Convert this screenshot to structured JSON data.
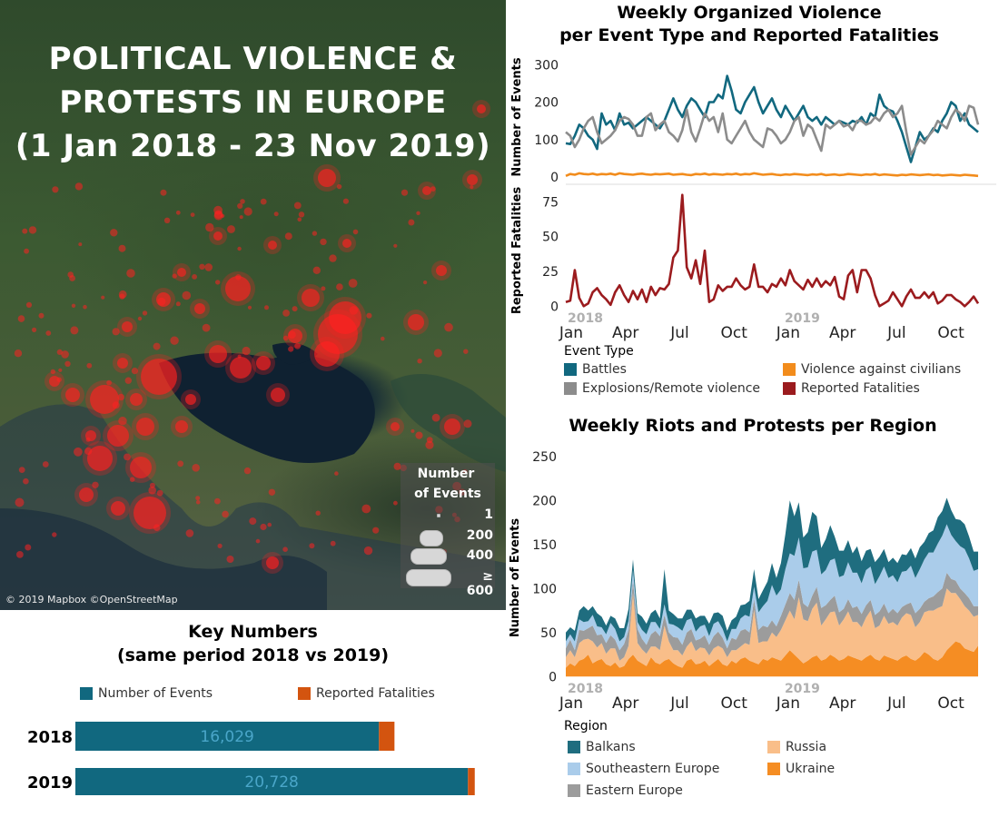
{
  "map": {
    "title_lines": [
      "POLITICAL VIOLENCE &",
      "PROTESTS IN EUROPE",
      "(1 Jan 2018 - 23 Nov 2019)"
    ],
    "copyright": "© 2019 Mapbox ©OpenStreetMap",
    "legend": {
      "title_lines": [
        "Number",
        "of Events"
      ],
      "sizes": [
        "1",
        "200",
        "400",
        "≥ 600"
      ]
    },
    "marker_color": "#ff2020"
  },
  "key_numbers": {
    "title_lines": [
      "Key Numbers",
      "(same period 2018 vs 2019)"
    ],
    "legend": [
      {
        "label": "Number of Events",
        "color": "#11687f"
      },
      {
        "label": "Reported Fatalities",
        "color": "#d3540f"
      }
    ]
  },
  "violence": {
    "title_lines": [
      "Weekly Organized Violence",
      "per Event Type and Reported Fatalities"
    ],
    "legend_title": "Event Type",
    "legend": [
      {
        "label": "Battles",
        "color": "#11687f"
      },
      {
        "label": "Violence against civilians",
        "color": "#f28c1c"
      },
      {
        "label": "Explosions/Remote violence",
        "color": "#8c8c8c"
      },
      {
        "label": "Reported Fatalities",
        "color": "#9b1b1e"
      }
    ]
  },
  "protests": {
    "title": "Weekly Riots and Protests per Region",
    "legend_title": "Region",
    "legend": [
      {
        "label": "Balkans",
        "color": "#1f6d7f"
      },
      {
        "label": "Russia",
        "color": "#f9be89"
      },
      {
        "label": "Southeastern Europe",
        "color": "#aaccea"
      },
      {
        "label": "Ukraine",
        "color": "#f58d23"
      },
      {
        "label": "Eastern Europe",
        "color": "#9c9c9c"
      }
    ]
  },
  "chart_data": [
    {
      "id": "key_numbers",
      "type": "bar",
      "orientation": "horizontal",
      "stacked": true,
      "categories": [
        "2018",
        "2019"
      ],
      "series": [
        {
          "name": "Number of Events",
          "color": "#11687f",
          "values": [
            16029,
            20728
          ],
          "labels": [
            "16,029",
            "20,728"
          ]
        },
        {
          "name": "Reported Fatalities",
          "color": "#d3540f",
          "values": [
            820,
            360
          ]
        }
      ]
    },
    {
      "id": "violence_events",
      "type": "line",
      "ylabel": "Number of Events",
      "yticks": [
        0,
        100,
        200,
        300
      ],
      "ylim": [
        0,
        320
      ],
      "x_start_year_labels": [
        "2018",
        "2019"
      ],
      "xticks": [
        "Jan",
        "Apr",
        "Jul",
        "Oct",
        "Jan",
        "Apr",
        "Jul",
        "Oct"
      ],
      "series": [
        {
          "name": "Battles",
          "color": "#11687f",
          "values": [
            90,
            88,
            110,
            140,
            130,
            110,
            100,
            75,
            170,
            140,
            150,
            125,
            170,
            140,
            145,
            130,
            140,
            150,
            160,
            150,
            140,
            130,
            150,
            180,
            210,
            180,
            160,
            190,
            210,
            200,
            180,
            160,
            200,
            200,
            220,
            210,
            270,
            230,
            180,
            170,
            200,
            220,
            240,
            200,
            170,
            190,
            210,
            180,
            160,
            190,
            170,
            150,
            170,
            190,
            160,
            150,
            160,
            140,
            160,
            150,
            140,
            150,
            145,
            140,
            150,
            145,
            160,
            140,
            170,
            160,
            220,
            190,
            180,
            175,
            150,
            120,
            80,
            40,
            80,
            120,
            100,
            110,
            130,
            120,
            150,
            170,
            200,
            190,
            150,
            170,
            140,
            130,
            120
          ]
        },
        {
          "name": "Explosions/Remote violence",
          "color": "#8c8c8c",
          "values": [
            120,
            110,
            80,
            100,
            130,
            150,
            160,
            120,
            90,
            100,
            110,
            125,
            150,
            160,
            155,
            140,
            110,
            110,
            160,
            170,
            125,
            140,
            150,
            120,
            110,
            95,
            125,
            180,
            120,
            95,
            130,
            170,
            150,
            160,
            120,
            170,
            100,
            90,
            110,
            130,
            150,
            120,
            100,
            90,
            80,
            130,
            125,
            110,
            90,
            100,
            120,
            150,
            160,
            110,
            140,
            130,
            100,
            70,
            140,
            130,
            140,
            150,
            135,
            140,
            125,
            150,
            150,
            140,
            145,
            160,
            150,
            170,
            180,
            160,
            170,
            190,
            120,
            60,
            80,
            100,
            90,
            110,
            125,
            150,
            140,
            130,
            160,
            180,
            170,
            150,
            190,
            185,
            140
          ]
        },
        {
          "name": "Violence against civilians",
          "color": "#f28c1c",
          "values": [
            3,
            8,
            6,
            10,
            8,
            7,
            9,
            6,
            8,
            7,
            9,
            6,
            10,
            8,
            7,
            6,
            8,
            9,
            7,
            6,
            8,
            7,
            8,
            9,
            6,
            7,
            8,
            6,
            5,
            8,
            7,
            9,
            6,
            8,
            7,
            6,
            8,
            7,
            9,
            6,
            8,
            7,
            10,
            8,
            6,
            7,
            8,
            6,
            5,
            7,
            6,
            8,
            7,
            6,
            5,
            7,
            6,
            8,
            5,
            6,
            7,
            5,
            6,
            8,
            7,
            6,
            5,
            7,
            6,
            8,
            5,
            7,
            6,
            5,
            4,
            6,
            5,
            7,
            6,
            5,
            6,
            7,
            5,
            6,
            4,
            5,
            6,
            5,
            4,
            6,
            5,
            4,
            3
          ]
        }
      ]
    },
    {
      "id": "violence_fatalities",
      "type": "line",
      "ylabel": "Reported Fatalities",
      "yticks": [
        0,
        25,
        50,
        75
      ],
      "ylim": [
        -5,
        85
      ],
      "series": [
        {
          "name": "Reported Fatalities",
          "color": "#9b1b1e",
          "values": [
            3,
            4,
            26,
            6,
            0,
            2,
            10,
            13,
            8,
            5,
            1,
            10,
            15,
            8,
            3,
            11,
            5,
            12,
            3,
            14,
            8,
            13,
            12,
            16,
            35,
            40,
            80,
            28,
            20,
            33,
            16,
            40,
            3,
            5,
            15,
            11,
            14,
            14,
            20,
            15,
            12,
            14,
            30,
            14,
            14,
            10,
            16,
            14,
            20,
            15,
            26,
            18,
            15,
            12,
            19,
            14,
            20,
            14,
            18,
            15,
            21,
            7,
            5,
            22,
            26,
            10,
            26,
            26,
            20,
            8,
            0,
            2,
            4,
            10,
            5,
            0,
            7,
            12,
            6,
            6,
            10,
            6,
            10,
            2,
            4,
            8,
            8,
            5,
            3,
            0,
            3,
            7,
            2
          ]
        }
      ]
    },
    {
      "id": "riots_protests",
      "type": "area",
      "stacked": true,
      "ylabel": "Number of Events",
      "yticks": [
        0,
        50,
        100,
        150,
        200,
        250
      ],
      "ylim": [
        -10,
        255
      ],
      "x_start_year_labels": [
        "2018",
        "2019"
      ],
      "xticks": [
        "Jan",
        "Apr",
        "Jul",
        "Oct",
        "Jan",
        "Apr",
        "Jul",
        "Oct"
      ],
      "series": [
        {
          "name": "Ukraine",
          "color": "#f58d23",
          "values": [
            10,
            15,
            12,
            18,
            20,
            25,
            15,
            18,
            20,
            14,
            12,
            16,
            10,
            12,
            20,
            25,
            18,
            15,
            12,
            22,
            16,
            14,
            18,
            20,
            15,
            12,
            10,
            18,
            20,
            14,
            15,
            18,
            12,
            16,
            20,
            14,
            12,
            18,
            15,
            20,
            22,
            18,
            16,
            14,
            20,
            18,
            22,
            20,
            18,
            24,
            30,
            25,
            20,
            15,
            18,
            22,
            24,
            18,
            20,
            25,
            22,
            18,
            20,
            24,
            22,
            20,
            18,
            22,
            25,
            20,
            18,
            24,
            22,
            20,
            18,
            22,
            24,
            20,
            18,
            22,
            28,
            25,
            20,
            18,
            22,
            30,
            35,
            40,
            38,
            32,
            30,
            28,
            35
          ]
        },
        {
          "name": "Russia",
          "color": "#f9be89",
          "values": [
            12,
            15,
            10,
            20,
            22,
            18,
            25,
            15,
            18,
            12,
            20,
            16,
            8,
            10,
            15,
            70,
            20,
            16,
            14,
            12,
            18,
            16,
            40,
            20,
            15,
            18,
            14,
            16,
            20,
            15,
            18,
            14,
            12,
            16,
            15,
            18,
            10,
            12,
            15,
            14,
            16,
            18,
            60,
            24,
            20,
            22,
            28,
            25,
            35,
            40,
            45,
            40,
            70,
            50,
            45,
            55,
            60,
            40,
            45,
            48,
            52,
            40,
            45,
            50,
            40,
            42,
            38,
            45,
            50,
            35,
            40,
            45,
            38,
            42,
            40,
            45,
            48,
            50,
            38,
            40,
            45,
            50,
            55,
            60,
            58,
            70,
            60,
            55,
            50,
            48,
            45,
            40,
            35
          ]
        },
        {
          "name": "Eastern Europe",
          "color": "#9c9c9c",
          "values": [
            10,
            12,
            8,
            15,
            10,
            12,
            18,
            14,
            10,
            12,
            15,
            10,
            12,
            15,
            18,
            14,
            16,
            12,
            10,
            14,
            18,
            16,
            12,
            10,
            15,
            14,
            12,
            16,
            14,
            12,
            10,
            15,
            12,
            14,
            16,
            12,
            10,
            14,
            12,
            18,
            16,
            14,
            12,
            15,
            18,
            16,
            14,
            12,
            16,
            18,
            20,
            22,
            20,
            18,
            16,
            15,
            18,
            20,
            16,
            14,
            18,
            15,
            12,
            14,
            16,
            18,
            15,
            14,
            12,
            15,
            16,
            14,
            12,
            15,
            14,
            12,
            10,
            14,
            16,
            15,
            12,
            14,
            16,
            18,
            20,
            18,
            16,
            14,
            12,
            15,
            14,
            12,
            10
          ]
        },
        {
          "name": "Southeastern Europe",
          "color": "#aaccea",
          "values": [
            8,
            6,
            10,
            12,
            10,
            8,
            12,
            10,
            8,
            10,
            14,
            12,
            10,
            8,
            10,
            12,
            8,
            10,
            12,
            14,
            10,
            8,
            12,
            10,
            14,
            12,
            16,
            14,
            12,
            10,
            14,
            12,
            10,
            14,
            12,
            10,
            8,
            10,
            12,
            14,
            16,
            18,
            14,
            20,
            22,
            30,
            40,
            35,
            30,
            40,
            45,
            50,
            48,
            40,
            45,
            50,
            42,
            38,
            40,
            45,
            42,
            40,
            38,
            42,
            40,
            38,
            35,
            40,
            38,
            35,
            40,
            42,
            40,
            38,
            35,
            40,
            38,
            42,
            40,
            45,
            48,
            52,
            50,
            55,
            60,
            55,
            50,
            45,
            48,
            50,
            45,
            40,
            42
          ]
        },
        {
          "name": "Balkans",
          "color": "#1f6d7f",
          "values": [
            10,
            8,
            12,
            10,
            18,
            12,
            10,
            15,
            12,
            10,
            8,
            12,
            15,
            10,
            14,
            12,
            10,
            15,
            12,
            10,
            14,
            12,
            40,
            15,
            12,
            10,
            14,
            12,
            10,
            15,
            12,
            10,
            14,
            12,
            10,
            15,
            12,
            10,
            14,
            15,
            12,
            18,
            20,
            15,
            18,
            22,
            25,
            20,
            30,
            40,
            60,
            45,
            40,
            35,
            40,
            45,
            38,
            30,
            35,
            40,
            25,
            30,
            28,
            25,
            22,
            30,
            25,
            22,
            20,
            25,
            22,
            20,
            18,
            20,
            22,
            20,
            18,
            20,
            22,
            25,
            20,
            22,
            25,
            30,
            28,
            30,
            28,
            25,
            30,
            28,
            25,
            22,
            20
          ]
        }
      ]
    }
  ]
}
